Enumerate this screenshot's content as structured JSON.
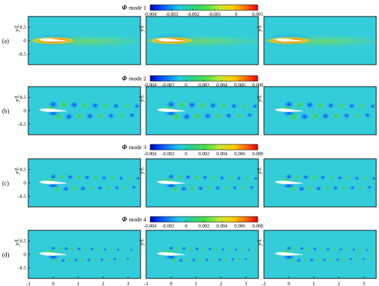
{
  "figure": {
    "x_axis_label": "x/L",
    "y_axis_label": "y/L",
    "x_ticks": [
      "-1",
      "0",
      "1",
      "2",
      "3"
    ],
    "y_ticks": [
      "0.5",
      "0",
      "-0.5"
    ],
    "rows": [
      {
        "label": "(a)",
        "mode_title": "mode 1",
        "symbol": "Φ",
        "colorbar": {
          "min": -0.004,
          "max": 0.001,
          "tick_labels": [
            "-0.004",
            "-0.003",
            "-0.002",
            "-0.001",
            "0",
            "0.001"
          ]
        },
        "pattern": "mean"
      },
      {
        "label": "(b)",
        "mode_title": "mode 2",
        "symbol": "Φ",
        "colorbar": {
          "min": -0.004,
          "max": 0.008,
          "tick_labels": [
            "-0.004",
            "-0.002",
            "0",
            "0.002",
            "0.004",
            "0.006",
            "0.008"
          ]
        },
        "pattern": "wave-strong"
      },
      {
        "label": "(c)",
        "mode_title": "mode 3",
        "symbol": "Φ",
        "colorbar": {
          "min": -0.004,
          "max": 0.008,
          "tick_labels": [
            "-0.004",
            "-0.002",
            "0",
            "0.002",
            "0.004",
            "0.006",
            "0.008"
          ]
        },
        "pattern": "wave-medium"
      },
      {
        "label": "(d)",
        "mode_title": "mode 4",
        "symbol": "Φ",
        "colorbar": {
          "min": -0.004,
          "max": 0.008,
          "tick_labels": [
            "-0.004",
            "-0.002",
            "0",
            "0.002",
            "0.004",
            "0.006",
            "0.008"
          ]
        },
        "pattern": "wave-fine"
      }
    ],
    "colors": {
      "background_field": "#33ccd9",
      "colormap": [
        "#0000c8",
        "#0a64ff",
        "#1ecbe6",
        "#32d080",
        "#4ce04c",
        "#c8e832",
        "#ffcc00",
        "#ff6a00",
        "#e80000"
      ]
    }
  }
}
